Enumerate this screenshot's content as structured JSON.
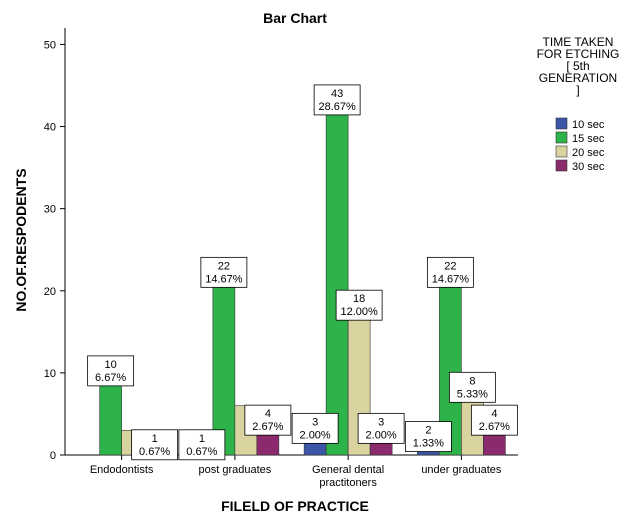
{
  "chart_data": {
    "type": "bar",
    "title": "Bar Chart",
    "xlabel": "FILELD OF PRACTICE",
    "ylabel": "NO.OF.RESPODENTS",
    "ylim": [
      0,
      52
    ],
    "yticks": [
      0,
      10,
      20,
      30,
      40,
      50
    ],
    "categories": [
      [
        "Endodontists"
      ],
      [
        "post graduates"
      ],
      [
        "General dental",
        "practitoners"
      ],
      [
        "under graduates"
      ]
    ],
    "legend": {
      "title": [
        "TIME TAKEN",
        "FOR ETCHING",
        "[ 5th",
        "GENERATION",
        "]"
      ],
      "placement": "right"
    },
    "series": [
      {
        "name": "10 sec",
        "color": "#3b56a6",
        "values": [
          0,
          1,
          3,
          2
        ],
        "labels": [
          null,
          [
            "1",
            "0.67%"
          ],
          [
            "3",
            "2.00%"
          ],
          [
            "2",
            "1.33%"
          ]
        ]
      },
      {
        "name": "15 sec",
        "color": "#2db34a",
        "values": [
          10,
          22,
          43,
          22
        ],
        "labels": [
          [
            "10",
            "6.67%"
          ],
          [
            "22",
            "14.67%"
          ],
          [
            "43",
            "28.67%"
          ],
          [
            "22",
            "14.67%"
          ]
        ]
      },
      {
        "name": "20 sec",
        "color": "#d9d3a0",
        "values": [
          3,
          6,
          18,
          8
        ],
        "labels": [
          null,
          null,
          [
            "18",
            "12.00%"
          ],
          [
            "8",
            "5.33%"
          ]
        ]
      },
      {
        "name": "30 sec",
        "color": "#8c2a6e",
        "values": [
          1,
          4,
          3,
          4
        ],
        "labels": [
          [
            "1",
            "0.67%"
          ],
          [
            "4",
            "2.67%"
          ],
          [
            "3",
            "2.00%"
          ],
          [
            "4",
            "2.67%"
          ]
        ]
      }
    ]
  }
}
